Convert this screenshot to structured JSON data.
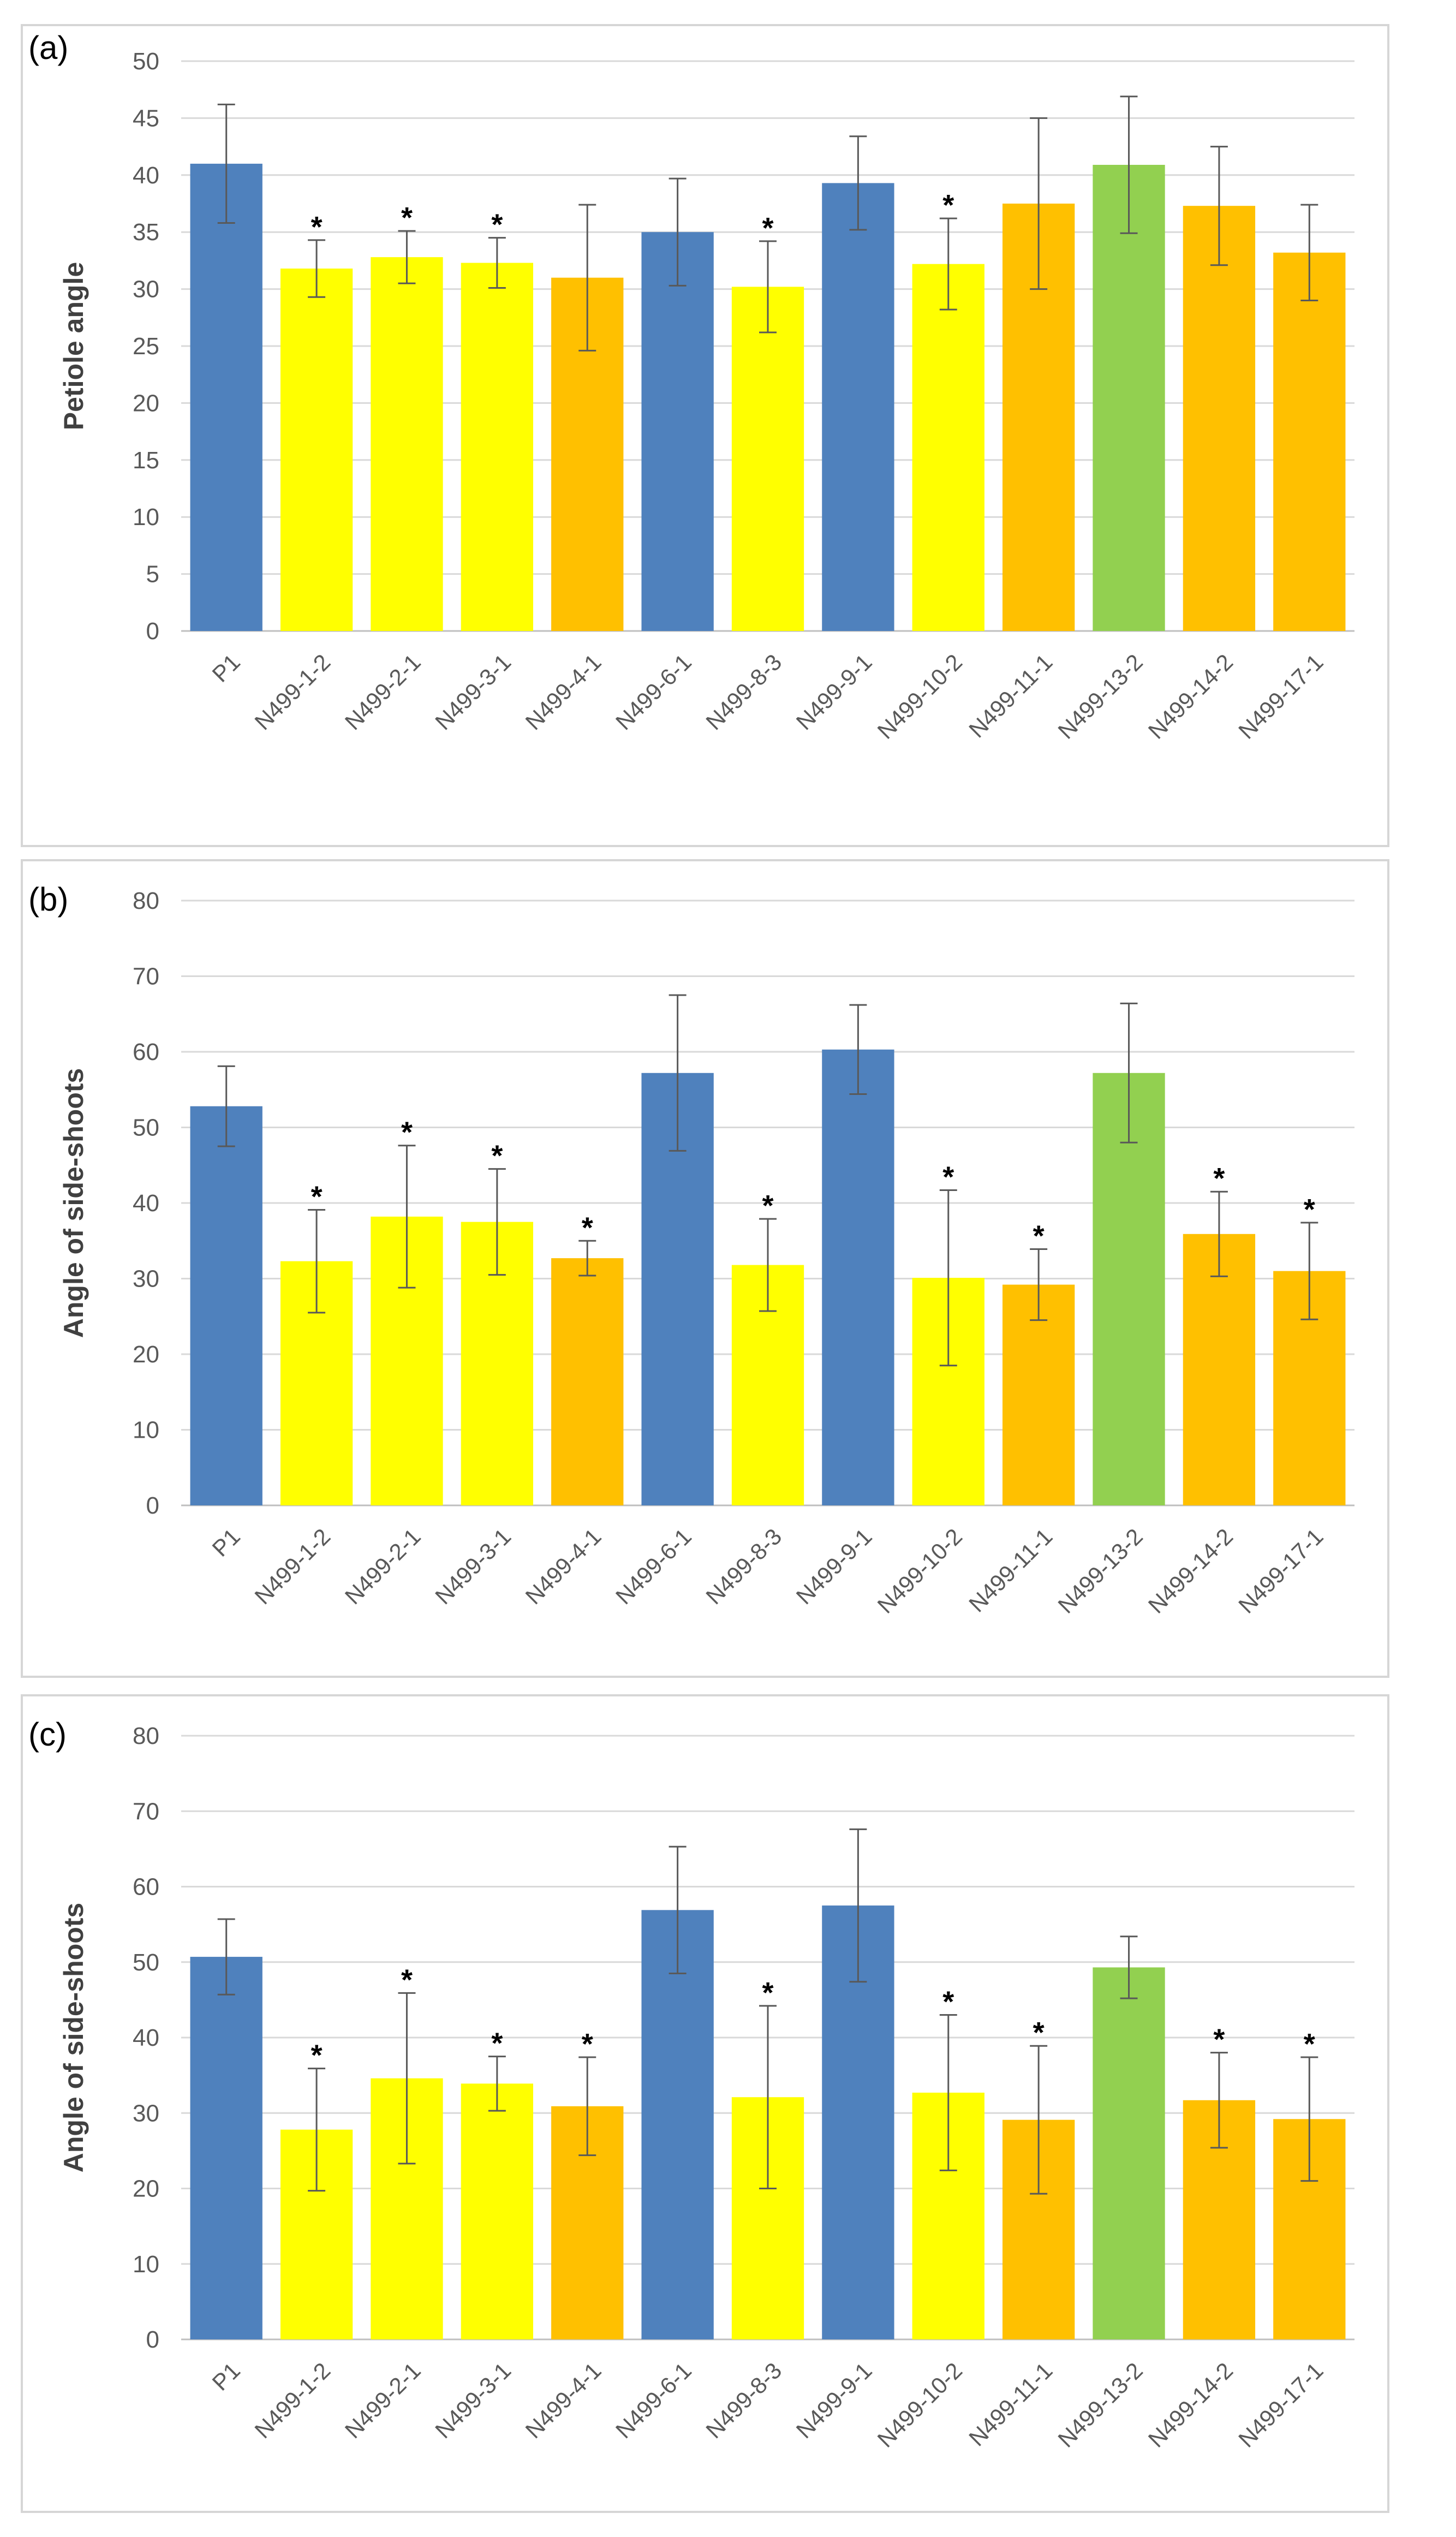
{
  "chart_data": [
    {
      "type": "bar",
      "panel_label": "(a)",
      "ylabel": "Petiole angle",
      "ylim": [
        0,
        50
      ],
      "ytick_step": 5,
      "grid": true,
      "categories": [
        "P1",
        "N499-1-2",
        "N499-2-1",
        "N499-3-1",
        "N499-4-1",
        "N499-6-1",
        "N499-8-3",
        "N499-9-1",
        "N499-10-2",
        "N499-11-1",
        "N499-13-2",
        "N499-14-2",
        "N499-17-1"
      ],
      "values": [
        41.0,
        31.8,
        32.8,
        32.3,
        31.0,
        35.0,
        30.2,
        39.3,
        32.2,
        37.5,
        40.9,
        37.3,
        33.2
      ],
      "errors": [
        5.2,
        2.5,
        2.3,
        2.2,
        6.4,
        4.7,
        4.0,
        4.1,
        4.0,
        7.5,
        6.0,
        5.2,
        4.2
      ],
      "significant": [
        false,
        true,
        true,
        true,
        false,
        false,
        true,
        false,
        true,
        false,
        false,
        false,
        false
      ],
      "significance_mark": "*",
      "colors": [
        "#4f81bd",
        "#ffff00",
        "#ffff00",
        "#ffff00",
        "#ffc000",
        "#4f81bd",
        "#ffff00",
        "#4f81bd",
        "#ffff00",
        "#ffc000",
        "#92d050",
        "#ffc000",
        "#ffc000"
      ]
    },
    {
      "type": "bar",
      "panel_label": "(b)",
      "ylabel": "Angle of side-shoots",
      "ylim": [
        0,
        80
      ],
      "ytick_step": 10,
      "grid": true,
      "categories": [
        "P1",
        "N499-1-2",
        "N499-2-1",
        "N499-3-1",
        "N499-4-1",
        "N499-6-1",
        "N499-8-3",
        "N499-9-1",
        "N499-10-2",
        "N499-11-1",
        "N499-13-2",
        "N499-14-2",
        "N499-17-1"
      ],
      "values": [
        52.8,
        32.3,
        38.2,
        37.5,
        32.7,
        57.2,
        31.8,
        60.3,
        30.1,
        29.2,
        57.2,
        35.9,
        31.0
      ],
      "errors": [
        5.3,
        6.8,
        9.4,
        7.0,
        2.3,
        10.3,
        6.1,
        5.9,
        11.6,
        4.7,
        9.2,
        5.6,
        6.4
      ],
      "significant": [
        false,
        true,
        true,
        true,
        true,
        false,
        true,
        false,
        true,
        true,
        false,
        true,
        true
      ],
      "significance_mark": "*",
      "colors": [
        "#4f81bd",
        "#ffff00",
        "#ffff00",
        "#ffff00",
        "#ffc000",
        "#4f81bd",
        "#ffff00",
        "#4f81bd",
        "#ffff00",
        "#ffc000",
        "#92d050",
        "#ffc000",
        "#ffc000"
      ]
    },
    {
      "type": "bar",
      "panel_label": "(c)",
      "ylabel": "Angle of side-shoots",
      "ylim": [
        0,
        80
      ],
      "ytick_step": 10,
      "grid": true,
      "categories": [
        "P1",
        "N499-1-2",
        "N499-2-1",
        "N499-3-1",
        "N499-4-1",
        "N499-6-1",
        "N499-8-3",
        "N499-9-1",
        "N499-10-2",
        "N499-11-1",
        "N499-13-2",
        "N499-14-2",
        "N499-17-1"
      ],
      "values": [
        50.7,
        27.8,
        34.6,
        33.9,
        30.9,
        56.9,
        32.1,
        57.5,
        32.7,
        29.1,
        49.3,
        31.7,
        29.2
      ],
      "errors": [
        5.0,
        8.1,
        11.3,
        3.6,
        6.5,
        8.4,
        12.1,
        10.1,
        10.3,
        9.8,
        4.1,
        6.3,
        8.2
      ],
      "significant": [
        false,
        true,
        true,
        true,
        true,
        false,
        true,
        false,
        true,
        true,
        false,
        true,
        true
      ],
      "significance_mark": "*",
      "colors": [
        "#4f81bd",
        "#ffff00",
        "#ffff00",
        "#ffff00",
        "#ffc000",
        "#4f81bd",
        "#ffff00",
        "#4f81bd",
        "#ffff00",
        "#ffc000",
        "#92d050",
        "#ffc000",
        "#ffc000"
      ]
    }
  ]
}
